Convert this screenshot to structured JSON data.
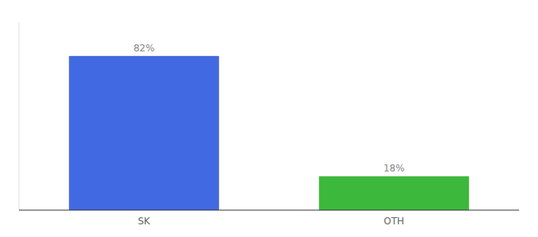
{
  "chart_data": {
    "type": "bar",
    "categories": [
      "SK",
      "OTH"
    ],
    "values": [
      82,
      18
    ],
    "value_labels": [
      "82%",
      "18%"
    ],
    "colors": [
      "#4169e1",
      "#3cb83c"
    ],
    "ylim": [
      0,
      100
    ],
    "data_labels": true,
    "tick_labels": "x",
    "grid": false
  }
}
